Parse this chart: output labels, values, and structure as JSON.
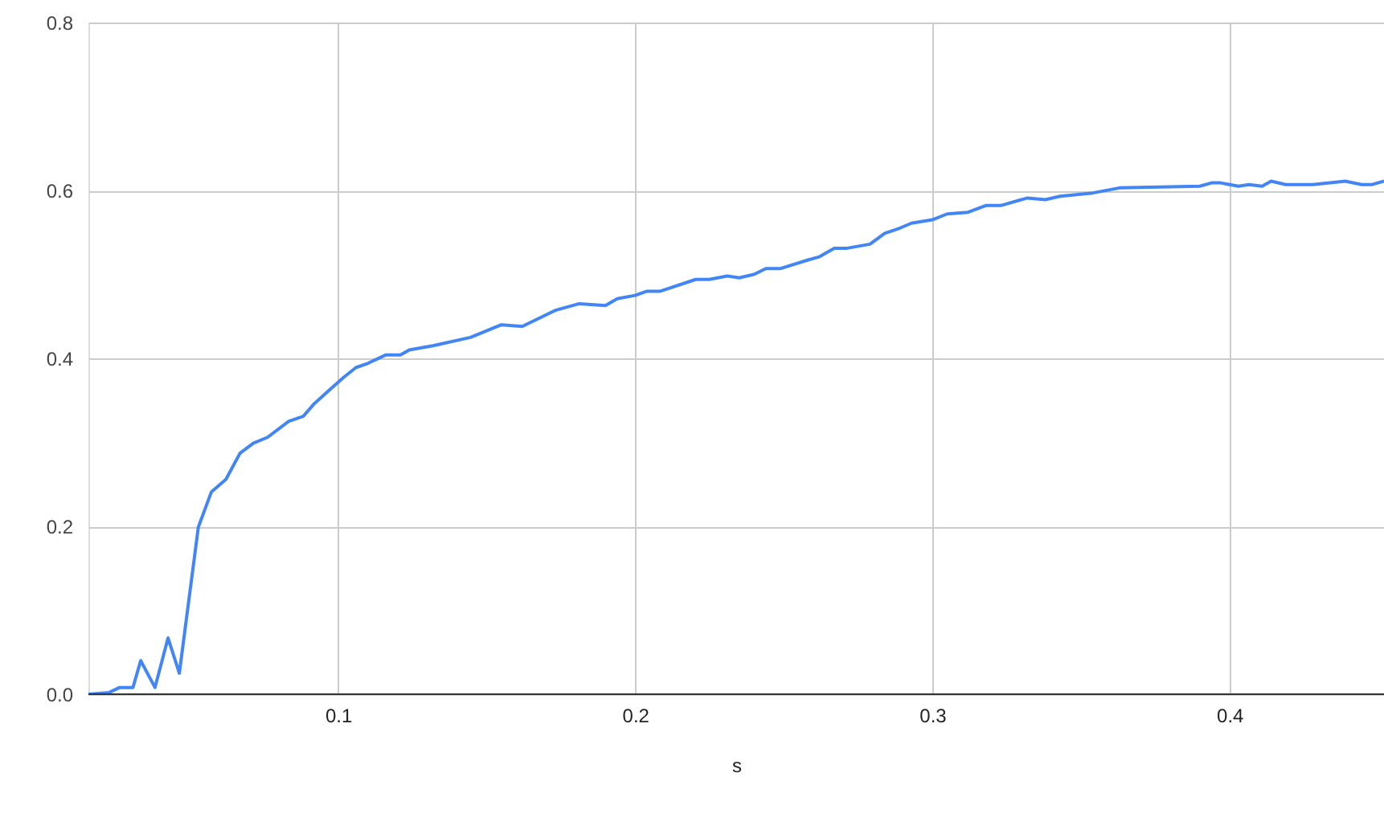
{
  "chart_data": {
    "type": "line",
    "xlabel": "s",
    "grid": true,
    "marker": "none",
    "line_style": "solid",
    "xlim": [
      0.016,
      0.452
    ],
    "ylim": [
      0,
      0.8
    ],
    "xticks": [
      0.1,
      0.2,
      0.3,
      0.4
    ],
    "yticks": [
      {
        "value": 0,
        "label": "0.0"
      },
      {
        "value": 0.2,
        "label": "0.2"
      },
      {
        "value": 0.4,
        "label": "0.4"
      },
      {
        "value": 0.6,
        "label": "0.6"
      },
      {
        "value": 0.8,
        "label": "0.8"
      }
    ],
    "series": [
      {
        "color": "#4285f4",
        "x": [
          0.016,
          0.023,
          0.0265,
          0.031,
          0.0336,
          0.0384,
          0.0428,
          0.0466,
          0.053,
          0.0574,
          0.0623,
          0.067,
          0.0715,
          0.0763,
          0.0834,
          0.0883,
          0.092,
          0.097,
          0.1018,
          0.106,
          0.11,
          0.116,
          0.121,
          0.124,
          0.132,
          0.1446,
          0.155,
          0.162,
          0.173,
          0.181,
          0.19,
          0.194,
          0.2,
          0.204,
          0.2085,
          0.2204,
          0.225,
          0.231,
          0.235,
          0.24,
          0.244,
          0.249,
          0.258,
          0.262,
          0.267,
          0.271,
          0.279,
          0.284,
          0.289,
          0.293,
          0.3,
          0.305,
          0.312,
          0.318,
          0.323,
          0.332,
          0.338,
          0.343,
          0.354,
          0.363,
          0.39,
          0.394,
          0.397,
          0.403,
          0.4066,
          0.411,
          0.414,
          0.419,
          0.428,
          0.439,
          0.4445,
          0.448,
          0.452
        ],
        "values": [
          0,
          0.002,
          0.008,
          0.008,
          0.04,
          0.008,
          0.067,
          0.025,
          0.199,
          0.241,
          0.256,
          0.287,
          0.299,
          0.306,
          0.325,
          0.331,
          0.346,
          0.362,
          0.377,
          0.389,
          0.394,
          0.404,
          0.404,
          0.41,
          0.415,
          0.425,
          0.44,
          0.438,
          0.457,
          0.465,
          0.463,
          0.471,
          0.475,
          0.48,
          0.48,
          0.494,
          0.494,
          0.498,
          0.496,
          0.5,
          0.507,
          0.507,
          0.517,
          0.521,
          0.531,
          0.531,
          0.536,
          0.549,
          0.555,
          0.561,
          0.565,
          0.572,
          0.574,
          0.582,
          0.582,
          0.591,
          0.589,
          0.593,
          0.597,
          0.603,
          0.605,
          0.609,
          0.609,
          0.605,
          0.607,
          0.605,
          0.611,
          0.607,
          0.607,
          0.611,
          0.607,
          0.607,
          0.611
        ]
      }
    ]
  }
}
